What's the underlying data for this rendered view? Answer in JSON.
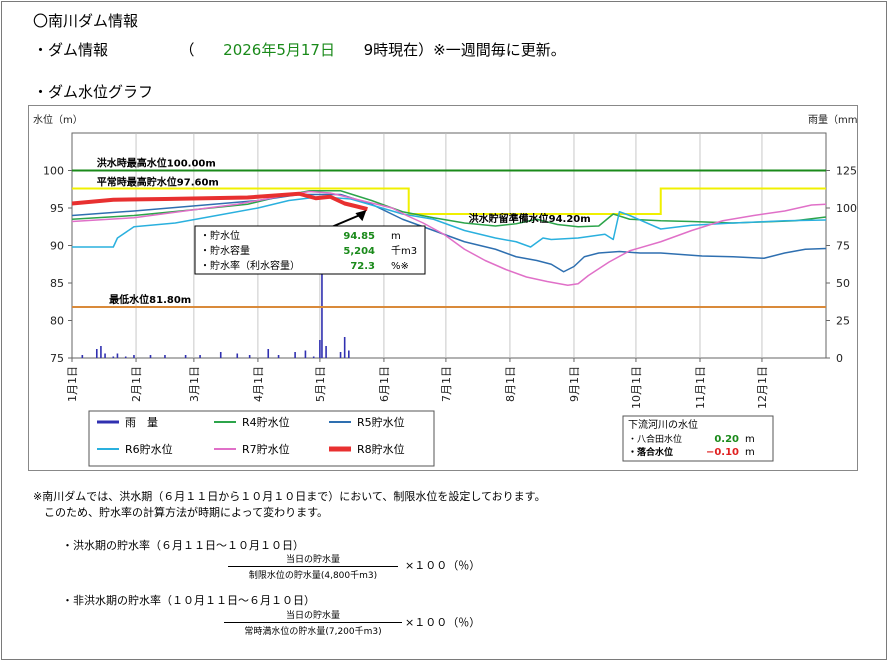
{
  "page": {
    "title": "〇南川ダム情報",
    "info_heading": "・ダム情報",
    "info_open": "（",
    "info_date": "2026年5月17日",
    "info_time": "9時現在）※一週間毎に更新。",
    "graph_heading": "・ダム水位グラフ"
  },
  "chart_data": {
    "type": "line",
    "title": "",
    "ylabel": "水位（m）",
    "ylabel2": "雨量（mm）",
    "xlabel": "",
    "ylim": [
      75,
      105
    ],
    "ylim2": [
      0,
      150
    ],
    "yticks": [
      75,
      80,
      85,
      90,
      95,
      100
    ],
    "yticks2": [
      0,
      25,
      50,
      75,
      100,
      125
    ],
    "months": [
      "1月1日",
      "2月1日",
      "3月1日",
      "4月1日",
      "5月1日",
      "6月1日",
      "7月1日",
      "8月1日",
      "9月1日",
      "10月1日",
      "11月1日",
      "12月1日"
    ],
    "reference_lines": [
      {
        "label": "洪水時最高水位100.00m",
        "value": 100.0,
        "color": "#1a8a1a"
      },
      {
        "label": "平常時最高貯水位97.60m",
        "value": 97.6,
        "color": "#1a8a1a"
      },
      {
        "label": "洪水貯留準備水位94.20m",
        "value": 94.2,
        "color": "#e8e83a"
      },
      {
        "label": "最低水位81.80m",
        "value": 81.8,
        "color": "#d98a3a"
      }
    ],
    "limit_level": {
      "name": "制限水位",
      "color": "#f0f000",
      "points": [
        [
          0,
          97.6
        ],
        [
          163,
          97.6
        ],
        [
          163,
          94.2
        ],
        [
          285,
          94.2
        ],
        [
          285,
          97.6
        ],
        [
          365,
          97.6
        ]
      ]
    },
    "series": [
      {
        "name": "R4貯水位",
        "color": "#2ca44a",
        "width": 1.5,
        "points": [
          [
            0,
            93.5
          ],
          [
            30,
            94.0
          ],
          [
            60,
            94.8
          ],
          [
            85,
            95.5
          ],
          [
            100,
            96.5
          ],
          [
            115,
            97.3
          ],
          [
            130,
            97.3
          ],
          [
            145,
            96.0
          ],
          [
            160,
            94.5
          ],
          [
            175,
            93.7
          ],
          [
            190,
            93.0
          ],
          [
            205,
            92.6
          ],
          [
            215,
            92.9
          ],
          [
            225,
            93.5
          ],
          [
            235,
            92.8
          ],
          [
            245,
            92.5
          ],
          [
            255,
            92.6
          ],
          [
            262,
            94.2
          ],
          [
            270,
            93.5
          ],
          [
            285,
            93.3
          ],
          [
            300,
            93.2
          ],
          [
            320,
            93.0
          ],
          [
            350,
            93.3
          ],
          [
            365,
            93.8
          ]
        ]
      },
      {
        "name": "R5貯水位",
        "color": "#2e6fb0",
        "width": 1.5,
        "points": [
          [
            0,
            94.0
          ],
          [
            30,
            94.6
          ],
          [
            60,
            95.3
          ],
          [
            90,
            96.0
          ],
          [
            110,
            96.8
          ],
          [
            130,
            96.8
          ],
          [
            145,
            95.5
          ],
          [
            160,
            93.5
          ],
          [
            175,
            92.0
          ],
          [
            190,
            90.5
          ],
          [
            205,
            89.5
          ],
          [
            215,
            88.5
          ],
          [
            225,
            88.0
          ],
          [
            232,
            87.5
          ],
          [
            238,
            86.5
          ],
          [
            243,
            87.2
          ],
          [
            248,
            88.5
          ],
          [
            255,
            89.0
          ],
          [
            265,
            89.2
          ],
          [
            275,
            89.0
          ],
          [
            285,
            89.0
          ],
          [
            305,
            88.6
          ],
          [
            320,
            88.5
          ],
          [
            335,
            88.3
          ],
          [
            345,
            89.0
          ],
          [
            355,
            89.5
          ],
          [
            365,
            89.6
          ]
        ]
      },
      {
        "name": "R6貯水位",
        "color": "#2ab0de",
        "width": 1.5,
        "points": [
          [
            0,
            89.8
          ],
          [
            20,
            89.8
          ],
          [
            22,
            91.0
          ],
          [
            30,
            92.5
          ],
          [
            50,
            93.0
          ],
          [
            70,
            94.0
          ],
          [
            90,
            95.0
          ],
          [
            105,
            96.0
          ],
          [
            120,
            96.5
          ],
          [
            135,
            96.2
          ],
          [
            150,
            95.0
          ],
          [
            160,
            94.2
          ],
          [
            175,
            93.5
          ],
          [
            190,
            92.0
          ],
          [
            205,
            91.0
          ],
          [
            215,
            90.5
          ],
          [
            222,
            89.8
          ],
          [
            228,
            91.0
          ],
          [
            232,
            90.8
          ],
          [
            245,
            91.0
          ],
          [
            258,
            91.5
          ],
          [
            262,
            90.8
          ],
          [
            265,
            94.5
          ],
          [
            270,
            94.0
          ],
          [
            285,
            92.2
          ],
          [
            300,
            92.7
          ],
          [
            320,
            93.0
          ],
          [
            345,
            93.3
          ],
          [
            365,
            93.4
          ]
        ]
      },
      {
        "name": "R7貯水位",
        "color": "#e070c8",
        "width": 1.5,
        "points": [
          [
            0,
            93.2
          ],
          [
            30,
            93.7
          ],
          [
            60,
            94.8
          ],
          [
            80,
            95.5
          ],
          [
            100,
            96.5
          ],
          [
            115,
            97.2
          ],
          [
            125,
            97.0
          ],
          [
            140,
            96.0
          ],
          [
            155,
            95.0
          ],
          [
            162,
            94.0
          ],
          [
            170,
            93.0
          ],
          [
            180,
            91.5
          ],
          [
            190,
            89.5
          ],
          [
            200,
            88.0
          ],
          [
            210,
            86.8
          ],
          [
            220,
            85.8
          ],
          [
            230,
            85.2
          ],
          [
            240,
            84.7
          ],
          [
            245,
            84.9
          ],
          [
            250,
            86.0
          ],
          [
            260,
            87.8
          ],
          [
            270,
            89.3
          ],
          [
            285,
            90.5
          ],
          [
            300,
            92.0
          ],
          [
            315,
            93.3
          ],
          [
            330,
            94.0
          ],
          [
            345,
            94.6
          ],
          [
            358,
            95.4
          ],
          [
            365,
            95.5
          ]
        ]
      },
      {
        "name": "R8貯水位",
        "color": "#e83030",
        "width": 4,
        "points": [
          [
            0,
            95.6
          ],
          [
            20,
            96.1
          ],
          [
            45,
            96.2
          ],
          [
            65,
            96.3
          ],
          [
            85,
            96.4
          ],
          [
            100,
            96.7
          ],
          [
            110,
            96.9
          ],
          [
            118,
            96.3
          ],
          [
            125,
            96.5
          ],
          [
            132,
            95.6
          ],
          [
            138,
            95.2
          ],
          [
            143,
            94.85
          ]
        ]
      }
    ],
    "rain": {
      "name": "雨量",
      "color": "#3030b0",
      "bars": [
        [
          5,
          2
        ],
        [
          12,
          6
        ],
        [
          14,
          8
        ],
        [
          16,
          3
        ],
        [
          20,
          1
        ],
        [
          22,
          3
        ],
        [
          26,
          1
        ],
        [
          30,
          2
        ],
        [
          38,
          2
        ],
        [
          45,
          2
        ],
        [
          55,
          2
        ],
        [
          62,
          2
        ],
        [
          72,
          4
        ],
        [
          80,
          3
        ],
        [
          86,
          2
        ],
        [
          95,
          6
        ],
        [
          100,
          2
        ],
        [
          108,
          4
        ],
        [
          113,
          5
        ],
        [
          117,
          1
        ],
        [
          120,
          12
        ],
        [
          121,
          60
        ],
        [
          123,
          8
        ],
        [
          130,
          4
        ],
        [
          132,
          14
        ],
        [
          134,
          5
        ]
      ]
    },
    "current_marker": {
      "x": 143,
      "y": 94.85
    }
  },
  "callout": {
    "rows": [
      {
        "label": "・貯水位",
        "value": "94.85",
        "unit": "m"
      },
      {
        "label": "・貯水容量",
        "value": "5,204",
        "unit": "千m3"
      },
      {
        "label": "・貯水率（利水容量）",
        "value": "72.3",
        "unit": "%※"
      }
    ]
  },
  "legend": {
    "rain": "雨　量",
    "r4": "R4貯水位",
    "r5": "R5貯水位",
    "r6": "R6貯水位",
    "r7": "R7貯水位",
    "r8": "R8貯水位"
  },
  "downstream": {
    "title": "下流河川の水位",
    "rows": [
      {
        "label": "・八合田水位",
        "value": "0.20",
        "unit": "m"
      },
      {
        "label": "・落合水位",
        "value": "−0.10",
        "unit": "m"
      }
    ]
  },
  "notes": {
    "line1": "※南川ダムでは、洪水期（６月１１日から１０月１０日まで）において、制限水位を設定しております。",
    "line2": "　このため、貯水率の計算方法が時期によって変わります。",
    "flood_label": "・洪水期の貯水率（６月１１日～１０月１０日）",
    "flood_num": "当日の貯水量",
    "flood_den": "制限水位の貯水量(4,800千m3)",
    "nonflood_label": "・非洪水期の貯水率（１０月１１日～６月１０日）",
    "nonflood_num": "当日の貯水量",
    "nonflood_den": "常時満水位の貯水量(7,200千m3)",
    "times": "×１００（％）"
  }
}
